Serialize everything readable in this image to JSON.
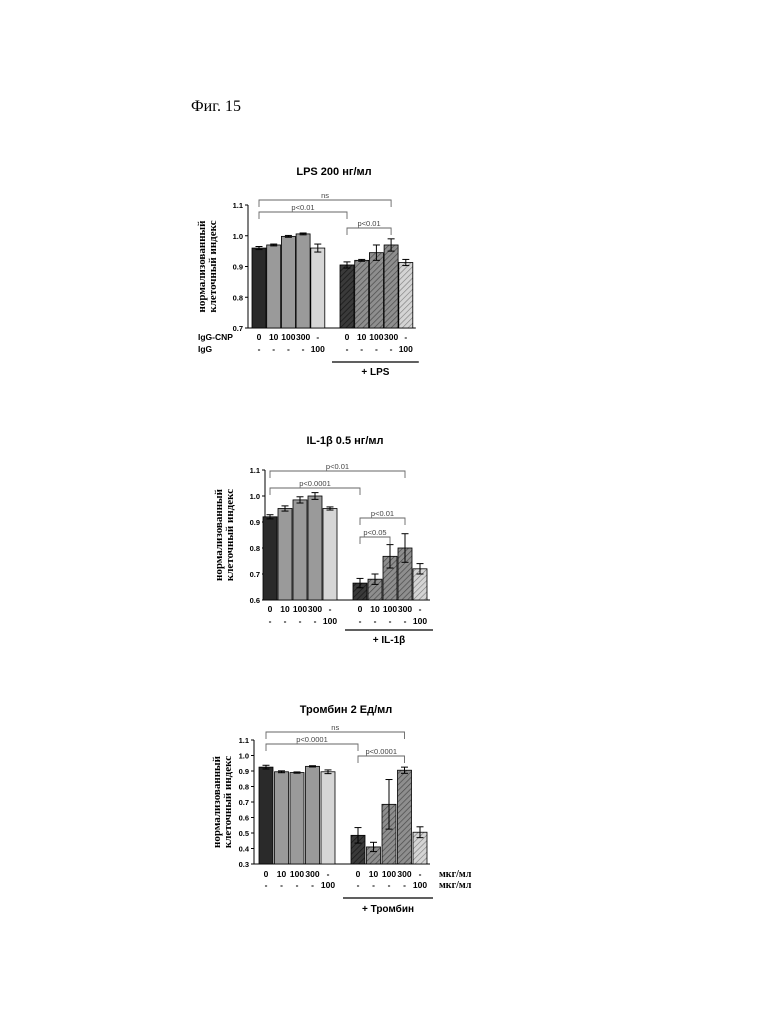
{
  "figure_label": "Фиг. 15",
  "chart_data": [
    {
      "type": "bar",
      "title": "LPS 200 нг/мл",
      "ylabel": [
        "нормализованный",
        "клеточный индекс"
      ],
      "ylim": [
        0.7,
        1.1
      ],
      "yticks": [
        "0.7",
        "0.8",
        "0.9",
        "1.0",
        "1.1"
      ],
      "categories": [
        "0",
        "10",
        "100",
        "300",
        "-",
        "0",
        "10",
        "100",
        "300",
        "-"
      ],
      "row_labels": [
        "IgG-CNP",
        "IgG"
      ],
      "row2": [
        "-",
        "-",
        "-",
        "-",
        "100",
        "-",
        "-",
        "-",
        "-",
        "100"
      ],
      "unit_labels": [],
      "values": [
        0.96,
        0.97,
        0.998,
        1.006,
        0.96,
        0.905,
        0.92,
        0.945,
        0.97,
        0.913
      ],
      "errors": [
        0.005,
        0.003,
        0.003,
        0.003,
        0.013,
        0.01,
        0.003,
        0.025,
        0.02,
        0.01
      ],
      "group_label": "+ LPS",
      "annotations": [
        "ns",
        "p<0.01",
        "p<0.01"
      ]
    },
    {
      "type": "bar",
      "title": "IL-1β 0.5 нг/мл",
      "ylabel": [
        "нормализованный",
        "клеточный индекс"
      ],
      "ylim": [
        0.6,
        1.1
      ],
      "yticks": [
        "0.6",
        "0.7",
        "0.8",
        "0.9",
        "1.0",
        "1.1"
      ],
      "categories": [
        "0",
        "10",
        "100",
        "300",
        "-",
        "0",
        "10",
        "100",
        "300",
        "-"
      ],
      "row_labels": [],
      "row2": [
        "-",
        "-",
        "-",
        "-",
        "100",
        "-",
        "-",
        "-",
        "-",
        "100"
      ],
      "unit_labels": [],
      "values": [
        0.92,
        0.952,
        0.985,
        1.0,
        0.952,
        0.665,
        0.68,
        0.768,
        0.8,
        0.72
      ],
      "errors": [
        0.008,
        0.01,
        0.012,
        0.013,
        0.006,
        0.018,
        0.02,
        0.045,
        0.055,
        0.02
      ],
      "group_label": "+ IL-1β",
      "annotations": [
        "p<0.01",
        "p<0.0001",
        "p<0.01",
        "p<0.05"
      ]
    },
    {
      "type": "bar",
      "title": "Тромбин 2 Ед/мл",
      "ylabel": [
        "нормализованный",
        "клеточный индекс"
      ],
      "ylim": [
        0.3,
        1.1
      ],
      "yticks": [
        "0.3",
        "0.4",
        "0.5",
        "0.6",
        "0.7",
        "0.8",
        "0.9",
        "1.0",
        "1.1"
      ],
      "categories": [
        "0",
        "10",
        "100",
        "300",
        "-",
        "0",
        "10",
        "100",
        "300",
        "-"
      ],
      "row_labels": [],
      "row2": [
        "-",
        "-",
        "-",
        "-",
        "100",
        "-",
        "-",
        "-",
        "-",
        "100"
      ],
      "unit_labels": [
        "мкг/мл",
        "мкг/мл"
      ],
      "values": [
        0.925,
        0.895,
        0.89,
        0.93,
        0.895,
        0.485,
        0.41,
        0.685,
        0.905,
        0.505
      ],
      "errors": [
        0.012,
        0.006,
        0.004,
        0.004,
        0.012,
        0.05,
        0.03,
        0.16,
        0.02,
        0.035
      ],
      "group_label": "+ Тромбин",
      "annotations": [
        "ns",
        "p<0.0001",
        "p<0.0001"
      ]
    }
  ]
}
